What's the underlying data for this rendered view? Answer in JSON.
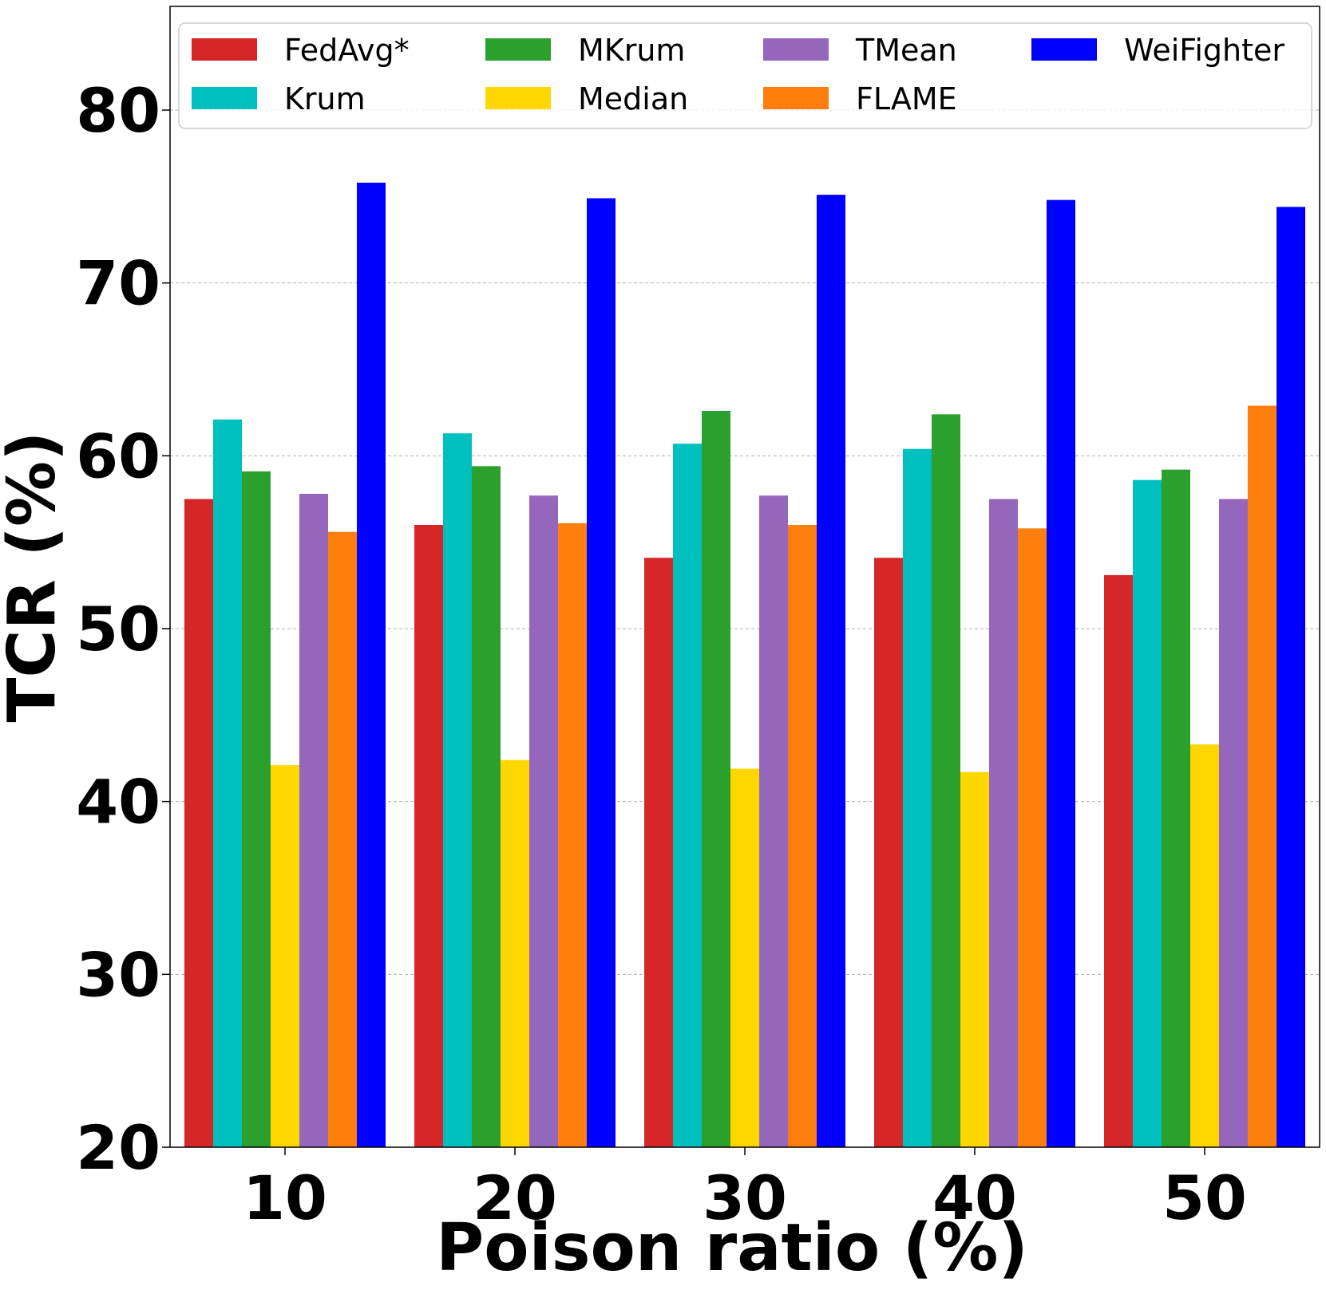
{
  "chart_data": {
    "type": "bar",
    "title": "",
    "xlabel": "Poison ratio (%)",
    "ylabel": "TCR (%)",
    "ylim": [
      20,
      86
    ],
    "yticks": [
      20,
      30,
      40,
      50,
      60,
      70,
      80
    ],
    "grid": "y-dashed",
    "legend_position": "top",
    "categories": [
      "10",
      "20",
      "30",
      "40",
      "50"
    ],
    "series": [
      {
        "name": "FedAvg*",
        "color": "#d62728",
        "values": [
          57.5,
          56.0,
          54.1,
          54.1,
          53.1
        ]
      },
      {
        "name": "Krum",
        "color": "#00bfbf",
        "values": [
          62.1,
          61.3,
          60.7,
          60.4,
          58.6
        ]
      },
      {
        "name": "MKrum",
        "color": "#2ca02c",
        "values": [
          59.1,
          59.4,
          62.6,
          62.4,
          59.2
        ]
      },
      {
        "name": "Median",
        "color": "#ffd700",
        "values": [
          42.1,
          42.4,
          41.9,
          41.7,
          43.3
        ]
      },
      {
        "name": "TMean",
        "color": "#9467bd",
        "values": [
          57.8,
          57.7,
          57.7,
          57.5,
          57.5
        ]
      },
      {
        "name": "FLAME",
        "color": "#ff7f0e",
        "values": [
          55.6,
          56.1,
          56.0,
          55.8,
          62.9
        ]
      },
      {
        "name": "WeiFighter",
        "color": "#0000ff",
        "values": [
          75.8,
          74.9,
          75.1,
          74.8,
          74.4
        ]
      }
    ]
  }
}
